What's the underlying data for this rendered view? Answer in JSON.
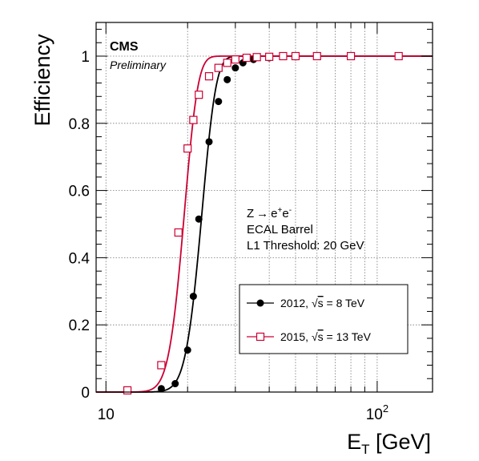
{
  "chart_data": {
    "type": "scatter",
    "xlabel": "E",
    "xlabel_sub": "T",
    "xlabel_unit": " [GeV]",
    "ylabel": "Efficiency",
    "x_scale": "log",
    "xlim": [
      9.2,
      160
    ],
    "ylim": [
      0,
      1.1
    ],
    "grid": true,
    "x_ticks": [
      {
        "value": 10,
        "label": "10",
        "sup": ""
      },
      {
        "value": 100,
        "label": "10",
        "sup": "2"
      }
    ],
    "y_ticks": [
      {
        "value": 0,
        "label": "0"
      },
      {
        "value": 0.2,
        "label": "0.2"
      },
      {
        "value": 0.4,
        "label": "0.4"
      },
      {
        "value": 0.6,
        "label": "0.6"
      },
      {
        "value": 0.8,
        "label": "0.8"
      },
      {
        "value": 1.0,
        "label": "1"
      }
    ],
    "annotations": {
      "experiment": "CMS",
      "status": "Preliminary",
      "process_lead": "Z",
      "process_arrow": "→",
      "process_e1": "e",
      "process_sup1": "+",
      "process_e2": "e",
      "process_sup2": "-",
      "region": "ECAL Barrel",
      "threshold": "L1 Threshold: 20 GeV"
    },
    "legend_position": "lower-right",
    "series": [
      {
        "name_prefix": "2012, ",
        "name_sqrt": "√",
        "name_s": "s",
        "name_suffix": " = 8  TeV",
        "color": "#000000",
        "marker": "filled-circle",
        "fit": {
          "mu": 22.4,
          "sigma": 2.3
        },
        "x": [
          12,
          16,
          18,
          20,
          21,
          22,
          24,
          26,
          28,
          30,
          32,
          35,
          40,
          50,
          60,
          80,
          120
        ],
        "y": [
          0.005,
          0.01,
          0.025,
          0.125,
          0.285,
          0.515,
          0.745,
          0.865,
          0.93,
          0.965,
          0.98,
          0.99,
          0.995,
          0.998,
          0.999,
          1.0,
          1.0
        ]
      },
      {
        "name_prefix": "2015, ",
        "name_sqrt": "√",
        "name_s": "s",
        "name_suffix": " = 13 TeV",
        "color": "#cc0033",
        "marker": "open-square",
        "fit": {
          "mu": 19.3,
          "sigma": 1.9
        },
        "x": [
          12,
          16,
          18.5,
          20,
          21,
          22,
          24,
          26,
          28,
          30,
          33,
          36,
          40,
          45,
          50,
          60,
          80,
          120
        ],
        "y": [
          0.005,
          0.08,
          0.475,
          0.725,
          0.81,
          0.885,
          0.94,
          0.965,
          0.98,
          0.99,
          0.995,
          0.997,
          0.998,
          1.0,
          1.0,
          1.0,
          1.0,
          1.0
        ]
      }
    ]
  }
}
